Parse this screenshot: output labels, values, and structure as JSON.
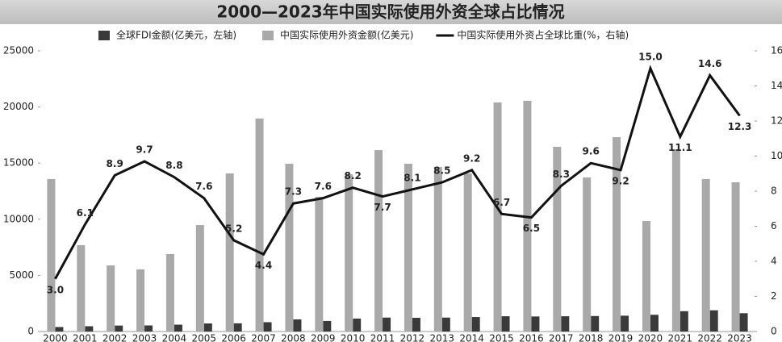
{
  "chart_data": {
    "type": "bar-line",
    "title": "2000—2023年中国实际使用外资全球占比情况",
    "categories": [
      "2000",
      "2001",
      "2002",
      "2003",
      "2004",
      "2005",
      "2006",
      "2007",
      "2008",
      "2009",
      "2010",
      "2011",
      "2012",
      "2013",
      "2014",
      "2015",
      "2016",
      "2017",
      "2018",
      "2019",
      "2020",
      "2021",
      "2022",
      "2023"
    ],
    "series": [
      {
        "name": "全球FDI金额(亿美元，左轴)",
        "type": "bar",
        "color": "#3a3a3a",
        "values": [
          400,
          470,
          530,
          540,
          610,
          720,
          730,
          830,
          1080,
          940,
          1150,
          1240,
          1220,
          1240,
          1290,
          1360,
          1340,
          1360,
          1380,
          1410,
          1490,
          1810,
          1890,
          1630
        ]
      },
      {
        "name": "中国实际使用外资金额(亿美元)",
        "type": "bar",
        "color": "#a9a9a9",
        "values": [
          13580,
          7690,
          5890,
          5530,
          6900,
          9480,
          14080,
          18970,
          14940,
          12000,
          14010,
          16160,
          14940,
          14650,
          14080,
          20400,
          20550,
          16450,
          13720,
          17310,
          9840,
          16240,
          13580,
          13290
        ]
      },
      {
        "name": "中国实际使用外资占全球比重(%，右轴)",
        "type": "line",
        "axis": "y2",
        "color": "#111111",
        "values": [
          3.0,
          6.1,
          8.9,
          9.7,
          8.8,
          7.6,
          5.2,
          4.4,
          7.3,
          7.6,
          8.2,
          7.7,
          8.1,
          8.5,
          9.2,
          6.7,
          6.5,
          8.3,
          9.6,
          9.2,
          15.0,
          11.1,
          14.6,
          12.3
        ],
        "value_labels": [
          "3.0",
          "6.1",
          "8.9",
          "9.7",
          "8.8",
          "7.6",
          "5.2",
          "4.4",
          "7.3",
          "7.6",
          "8.2",
          "7.7",
          "8.1",
          "8.5",
          "9.2",
          "6.7",
          "6.5",
          "8.3",
          "9.6",
          "9.2",
          "15.0",
          "11.1",
          "14.6",
          "12.3"
        ]
      }
    ],
    "ylim": [
      0,
      25000
    ],
    "yticks": [
      0,
      5000,
      10000,
      15000,
      20000,
      25000
    ],
    "y2lim": [
      0,
      16
    ],
    "y2ticks": [
      0,
      2,
      4,
      6,
      8,
      10,
      12,
      14,
      16
    ],
    "grid": false
  }
}
